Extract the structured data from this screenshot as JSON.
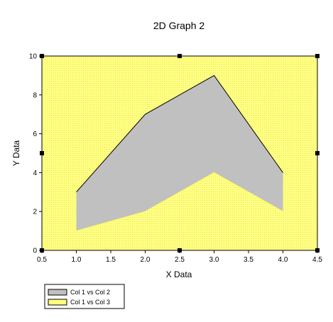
{
  "chart_data": {
    "type": "area",
    "title": "2D Graph 2",
    "xlabel": "X Data",
    "ylabel": "Y Data",
    "xlim": [
      0.5,
      4.5
    ],
    "ylim": [
      0,
      10
    ],
    "x_ticks": [
      "0.5",
      "1.0",
      "1.5",
      "2.0",
      "2.5",
      "3.0",
      "3.5",
      "4.0",
      "4.5"
    ],
    "y_ticks": [
      "0",
      "2",
      "4",
      "6",
      "8",
      "10"
    ],
    "x": [
      1.0,
      2.0,
      3.0,
      4.0
    ],
    "series": [
      {
        "name": "Col 1 vs Col 2",
        "values": [
          3,
          7,
          9,
          4
        ],
        "color": "#c0c0c0"
      },
      {
        "name": "Col 1 vs Col 3",
        "values": [
          1,
          2,
          4,
          2
        ],
        "color": "#ffff80"
      }
    ],
    "plot_background": "#ffff80",
    "grid": false,
    "legend_position": "bottom-left"
  }
}
